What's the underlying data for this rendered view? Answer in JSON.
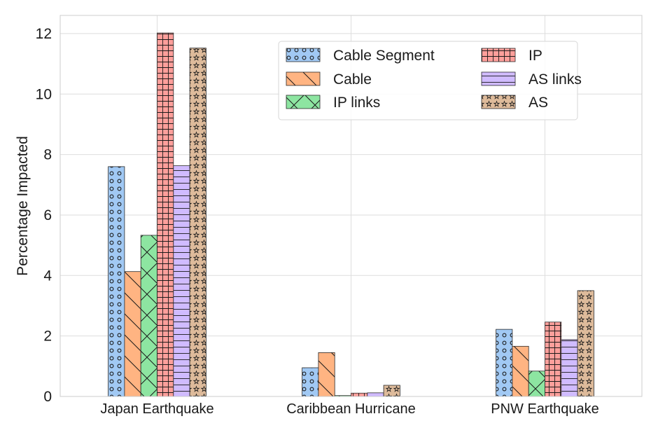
{
  "chart_data": {
    "type": "bar",
    "title": "",
    "xlabel": "",
    "ylabel": "Percentage Impacted",
    "ylim": [
      0,
      12.6
    ],
    "yticks": [
      0,
      2,
      4,
      6,
      8,
      10,
      12
    ],
    "grid": true,
    "legend_position": "top-right",
    "categories": [
      "Japan Earthquake",
      "Caribbean Hurricane",
      "PNW Earthquake"
    ],
    "series": [
      {
        "name": "Cable Segment",
        "values": [
          7.6,
          0.95,
          2.22
        ],
        "color": "#a1c9f4",
        "pattern": "dots"
      },
      {
        "name": "Cable",
        "values": [
          4.13,
          1.45,
          1.66
        ],
        "color": "#ffb482",
        "pattern": "backslash"
      },
      {
        "name": "IP links",
        "values": [
          5.33,
          0.03,
          0.84
        ],
        "color": "#8de5a1",
        "pattern": "cross-diagonal"
      },
      {
        "name": "IP",
        "values": [
          12.02,
          0.11,
          2.46
        ],
        "color": "#ff9f9b",
        "pattern": "grid"
      },
      {
        "name": "AS links",
        "values": [
          7.63,
          0.12,
          1.88
        ],
        "color": "#d0bbff",
        "pattern": "horizontal"
      },
      {
        "name": "AS",
        "values": [
          11.52,
          0.37,
          3.5
        ],
        "color": "#debb9b",
        "pattern": "stars"
      }
    ]
  }
}
